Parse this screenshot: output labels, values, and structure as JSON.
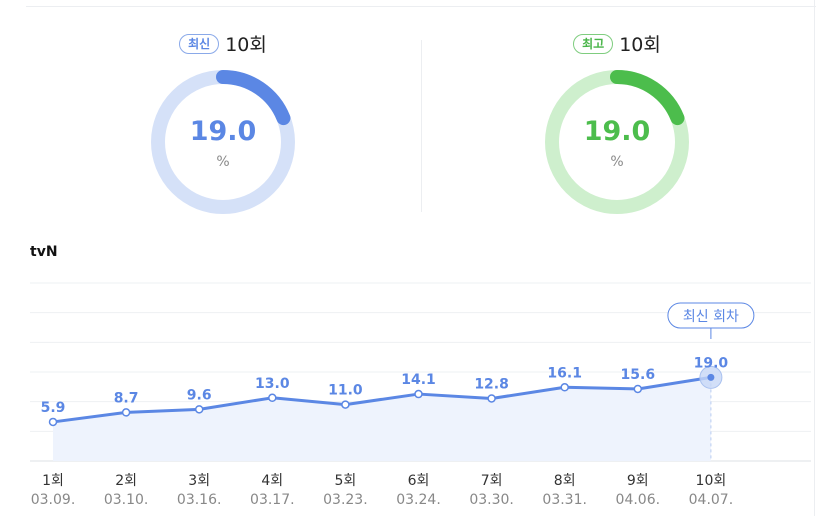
{
  "stats": {
    "latest": {
      "badge": "최신",
      "episode": "10회",
      "value": "19.0",
      "unit": "%",
      "fraction": 0.19,
      "color": "#5b87e4",
      "track_color": "#d5e1f8"
    },
    "highest": {
      "badge": "최고",
      "episode": "10회",
      "value": "19.0",
      "unit": "%",
      "fraction": 0.19,
      "color": "#4cbd4c",
      "track_color": "#ceefcd"
    }
  },
  "channel": "tvN",
  "chart_data": {
    "type": "area",
    "categories": [
      "1회",
      "2회",
      "3회",
      "4회",
      "5회",
      "6회",
      "7회",
      "8회",
      "9회",
      "10회"
    ],
    "dates": [
      "03.09.",
      "03.10.",
      "03.16.",
      "03.17.",
      "03.23.",
      "03.24.",
      "03.30.",
      "03.31.",
      "04.06.",
      "04.07."
    ],
    "series": [
      {
        "values": [
          5.9,
          8.7,
          9.6,
          13.0,
          11.0,
          14.1,
          12.8,
          16.1,
          15.6,
          19.0
        ]
      }
    ],
    "value_labels": [
      "5.9",
      "8.7",
      "9.6",
      "13.0",
      "11.0",
      "14.1",
      "12.8",
      "16.1",
      "15.6",
      "19.0"
    ],
    "highlight_index": 9,
    "highlight_label": "최신 회차",
    "line_color": "#5b87e4",
    "fill_color": "#eef3fd",
    "grid": true
  }
}
